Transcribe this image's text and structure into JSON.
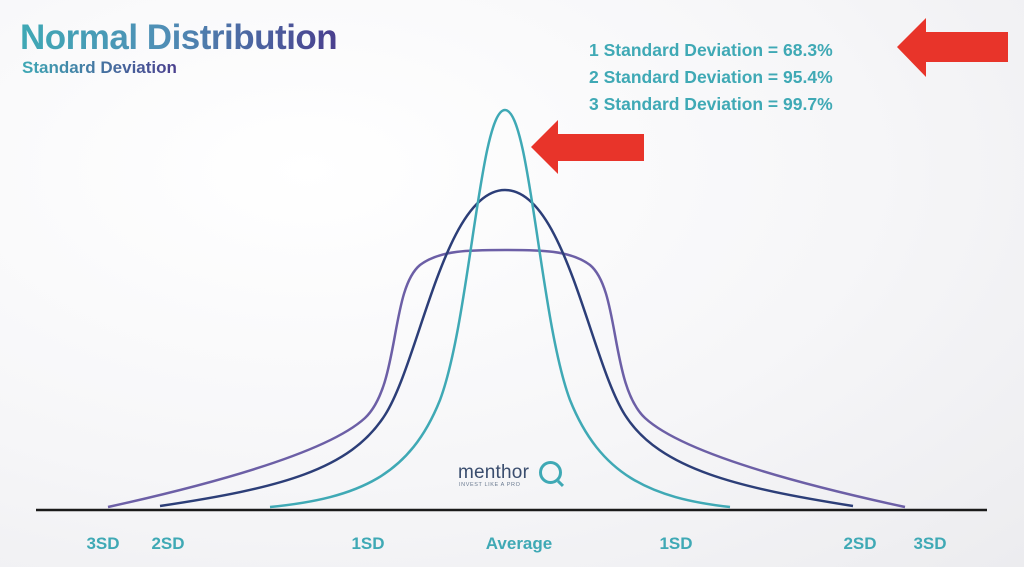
{
  "header": {
    "title": "Normal Distribution",
    "subtitle": "Standard Deviation"
  },
  "stats": [
    "1 Standard Deviation = 68.3%",
    "2 Standard Deviation = 95.4%",
    "3 Standard Deviation = 99.7%"
  ],
  "axis_labels": [
    "3SD",
    "2SD",
    "1SD",
    "Average",
    "1SD",
    "2SD",
    "3SD"
  ],
  "brand": {
    "name": "menthor",
    "tagline": "INVEST LIKE A PRO",
    "logo": "menthorq-logo"
  },
  "icons": [
    "arrow-left-icon",
    "arrow-left-icon"
  ],
  "colors": {
    "accent_teal": "#3fa9b5",
    "navy": "#2c3e78",
    "purple": "#6c5fa6",
    "arrow_red": "#e8342a",
    "axis": "#1a1a1a"
  },
  "curves": [
    {
      "id": "narrow",
      "color": "#3fa9b5"
    },
    {
      "id": "medium",
      "color": "#2c3e78"
    },
    {
      "id": "wide",
      "color": "#6c5fa6"
    }
  ]
}
